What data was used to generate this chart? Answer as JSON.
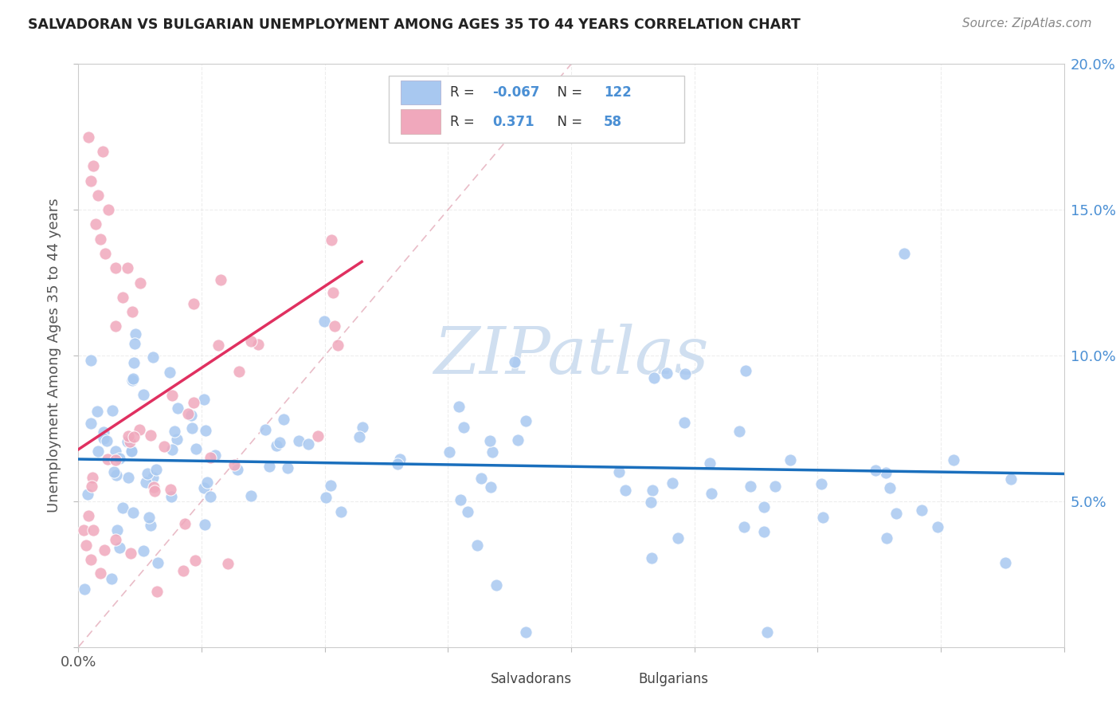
{
  "title": "SALVADORAN VS BULGARIAN UNEMPLOYMENT AMONG AGES 35 TO 44 YEARS CORRELATION CHART",
  "source": "Source: ZipAtlas.com",
  "ylabel": "Unemployment Among Ages 35 to 44 years",
  "legend_salvadorans": "Salvadorans",
  "legend_bulgarians": "Bulgarians",
  "R_salvadoran": -0.067,
  "N_salvadoran": 122,
  "R_bulgarian": 0.371,
  "N_bulgarian": 58,
  "salvadoran_color": "#a8c8f0",
  "bulgarian_color": "#f0a8bc",
  "salvadoran_line_color": "#1a6fbd",
  "bulgarian_line_color": "#e03060",
  "diag_line_color": "#e0a0b0",
  "xlim": [
    0.0,
    0.4
  ],
  "ylim": [
    0.0,
    0.2
  ],
  "background_color": "#ffffff",
  "grid_color": "#dddddd",
  "watermark_color": "#d0dff0",
  "title_color": "#222222",
  "source_color": "#888888",
  "axis_label_color": "#555555",
  "tick_label_color": "#4a8fd4",
  "legend_R_color": "#4a8fd4",
  "legend_N_color": "#4a8fd4",
  "legend_border_color": "#cccccc"
}
